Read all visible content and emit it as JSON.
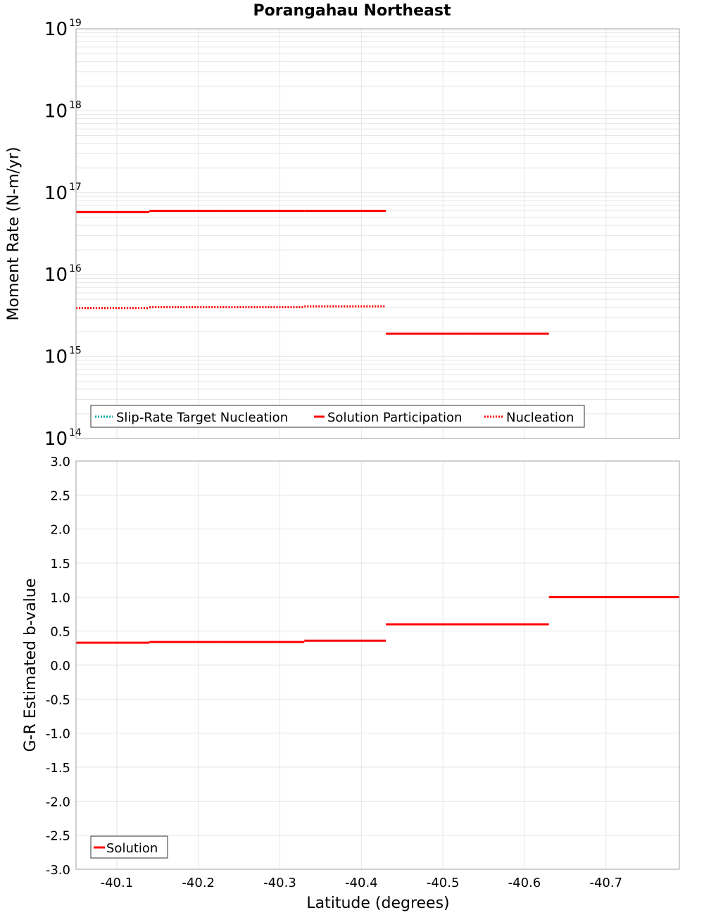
{
  "title": "Porangahau Northeast",
  "colors": {
    "solution": "#ff0000",
    "target": "#00aaaa",
    "grid": "#e6e6e6",
    "frame": "#a0a0a0"
  },
  "chart_data": [
    {
      "id": "moment",
      "type": "line",
      "ylabel": "Moment Rate (N-m/yr)",
      "yscale": "log",
      "ylim": [
        100000000000000.0,
        1e+19
      ],
      "yticks": [
        {
          "base": "10",
          "exp": "14",
          "value": 100000000000000.0
        },
        {
          "base": "10",
          "exp": "15",
          "value": 1000000000000000.0
        },
        {
          "base": "10",
          "exp": "16",
          "value": 1e+16
        },
        {
          "base": "10",
          "exp": "17",
          "value": 1e+17
        },
        {
          "base": "10",
          "exp": "18",
          "value": 1e+18
        },
        {
          "base": "10",
          "exp": "19",
          "value": 1e+19
        }
      ],
      "series": [
        {
          "name": "Slip-Rate Target Nucleation",
          "style": "dotted",
          "color": "#00aaaa",
          "segments": []
        },
        {
          "name": "Solution Participation",
          "style": "solid",
          "color": "#ff0000",
          "segments": [
            {
              "x0": -40.05,
              "x1": -40.14,
              "y": 5.8e+16
            },
            {
              "x0": -40.14,
              "x1": -40.23,
              "y": 6e+16
            },
            {
              "x0": -40.23,
              "x1": -40.33,
              "y": 6e+16
            },
            {
              "x0": -40.33,
              "x1": -40.43,
              "y": 6e+16
            },
            {
              "x0": -40.43,
              "x1": -40.53,
              "y": 1900000000000000.0
            },
            {
              "x0": -40.53,
              "x1": -40.63,
              "y": 1900000000000000.0
            }
          ]
        },
        {
          "name": "Nucleation",
          "style": "dotted",
          "color": "#ff0000",
          "segments": [
            {
              "x0": -40.05,
              "x1": -40.14,
              "y": 3900000000000000.0
            },
            {
              "x0": -40.14,
              "x1": -40.23,
              "y": 4000000000000000.0
            },
            {
              "x0": -40.23,
              "x1": -40.33,
              "y": 4000000000000000.0
            },
            {
              "x0": -40.33,
              "x1": -40.43,
              "y": 4100000000000000.0
            }
          ]
        }
      ],
      "legend": [
        "Slip-Rate Target Nucleation",
        "Solution Participation",
        "Nucleation"
      ]
    },
    {
      "id": "bvalue",
      "type": "line",
      "xlabel": "Latitude (degrees)",
      "ylabel": "G-R Estimated b-value",
      "ylim": [
        -3.0,
        3.0
      ],
      "yticks": [
        "3.0",
        "2.5",
        "2.0",
        "1.5",
        "1.0",
        "0.5",
        "0.0",
        "-0.5",
        "-1.0",
        "-1.5",
        "-2.0",
        "-2.5",
        "-3.0"
      ],
      "series": [
        {
          "name": "Solution",
          "style": "solid",
          "color": "#ff0000",
          "segments": [
            {
              "x0": -40.05,
              "x1": -40.14,
              "y": 0.33
            },
            {
              "x0": -40.14,
              "x1": -40.23,
              "y": 0.34
            },
            {
              "x0": -40.23,
              "x1": -40.33,
              "y": 0.34
            },
            {
              "x0": -40.33,
              "x1": -40.43,
              "y": 0.36
            },
            {
              "x0": -40.43,
              "x1": -40.53,
              "y": 0.6
            },
            {
              "x0": -40.53,
              "x1": -40.63,
              "y": 0.6
            },
            {
              "x0": -40.63,
              "x1": -40.79,
              "y": 1.0
            }
          ]
        }
      ],
      "legend": [
        "Solution"
      ]
    }
  ],
  "xaxis": {
    "xlim": [
      -40.05,
      -40.79
    ],
    "xticks": [
      "-40.1",
      "-40.2",
      "-40.3",
      "-40.4",
      "-40.5",
      "-40.6",
      "-40.7"
    ]
  }
}
